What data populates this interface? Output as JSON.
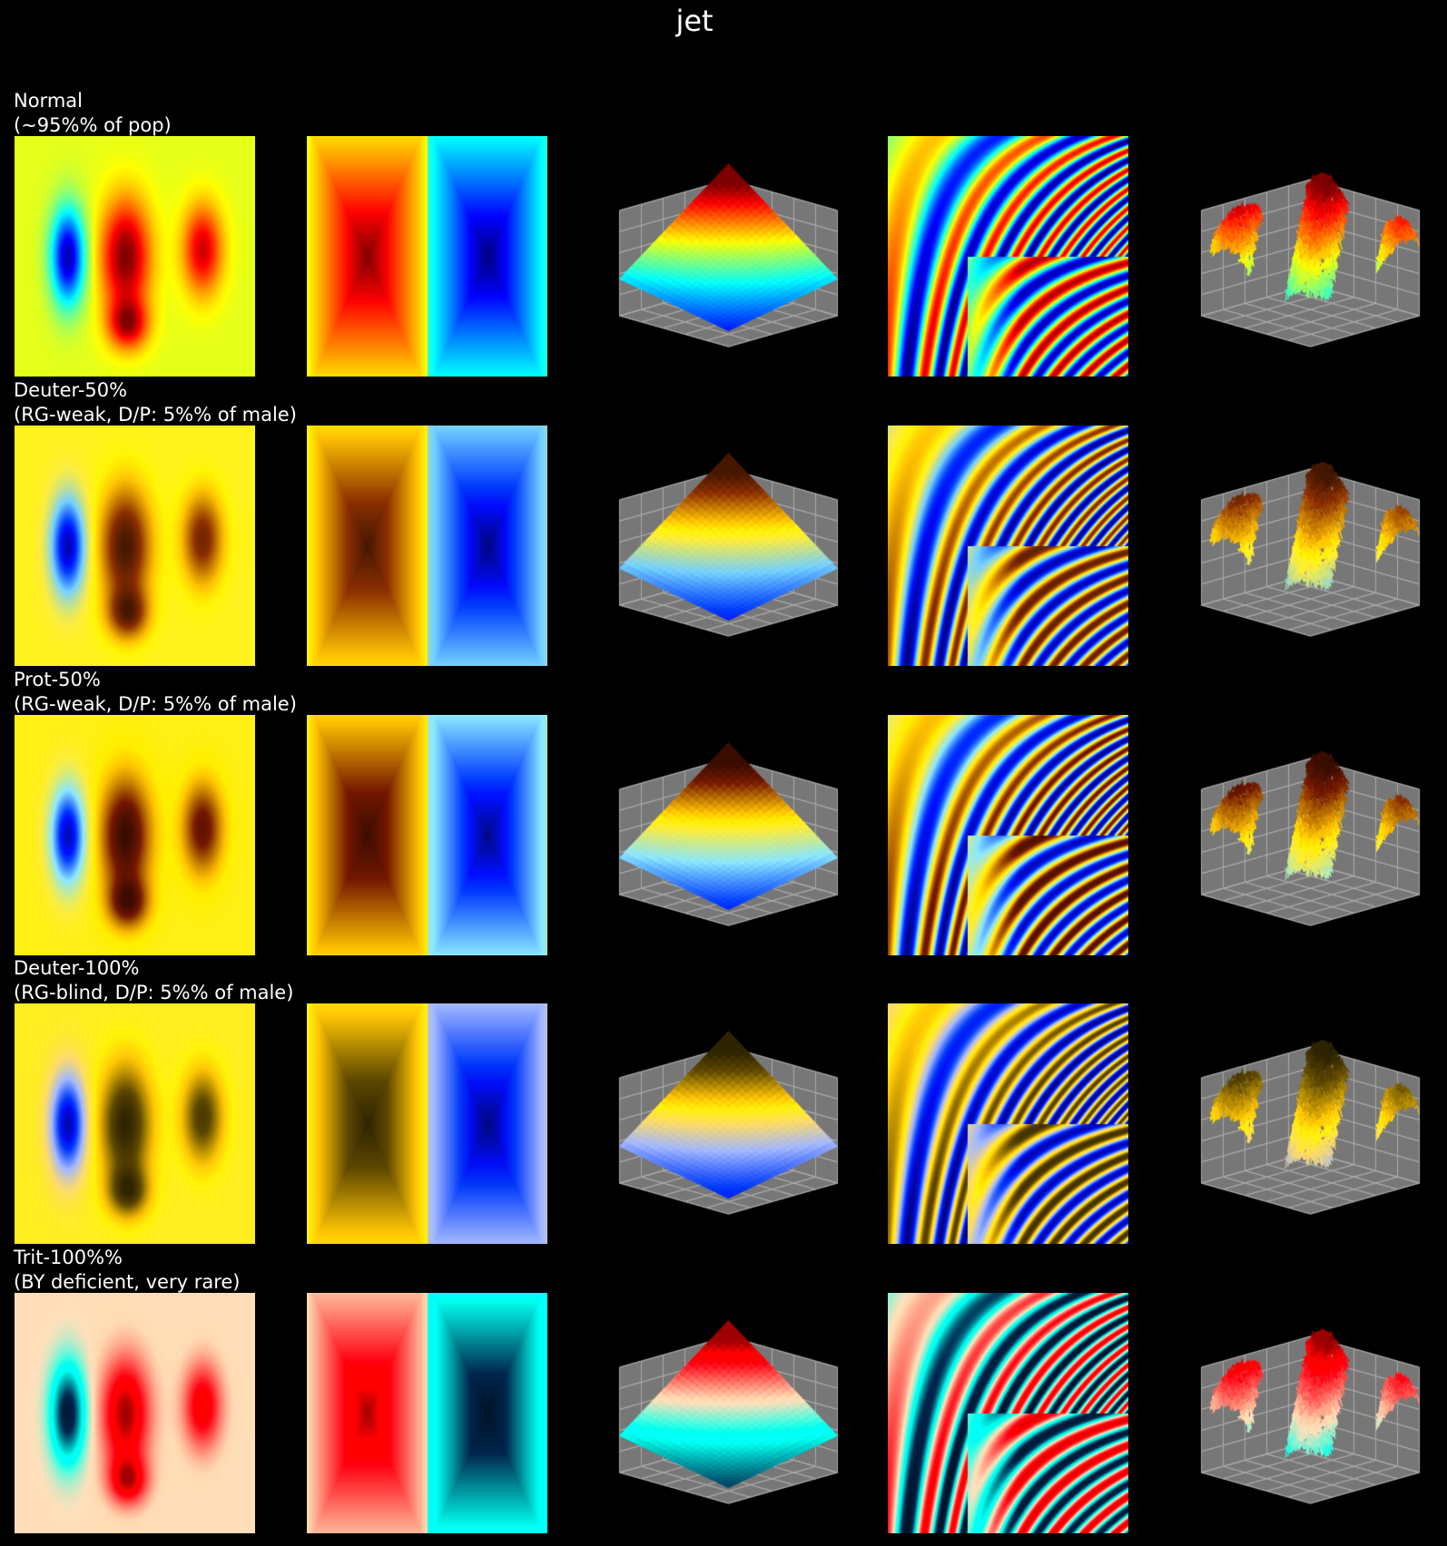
{
  "figure": {
    "title": "jet"
  },
  "chart_data": {
    "type": "heatmap",
    "title": "jet",
    "colormap": "jet",
    "background": "#000000",
    "panels": [
      "2D gaussian blobs image",
      "2D rectangular gradient image",
      "3D surface (plane)",
      "2D interference pattern image",
      "3D noisy surface"
    ],
    "rows": [
      {
        "label_line1": "Normal",
        "label_line2": "(~95%% of pop)",
        "simulation": "normal",
        "severity": 0
      },
      {
        "label_line1": "Deuter-50%",
        "label_line2": "(RG-weak, D/P: 5%% of male)",
        "simulation": "deuteranomaly",
        "severity": 0.5
      },
      {
        "label_line1": "Prot-50%",
        "label_line2": "(RG-weak, D/P: 5%% of male)",
        "simulation": "protanomaly",
        "severity": 0.5
      },
      {
        "label_line1": "Deuter-100%",
        "label_line2": "(RG-blind, D/P: 5%% of male)",
        "simulation": "deuteranopia",
        "severity": 1.0
      },
      {
        "label_line1": "Trit-100%%",
        "label_line2": "(BY deficient, very rare)",
        "simulation": "tritanopia",
        "severity": 1.0
      }
    ],
    "grid": true
  }
}
